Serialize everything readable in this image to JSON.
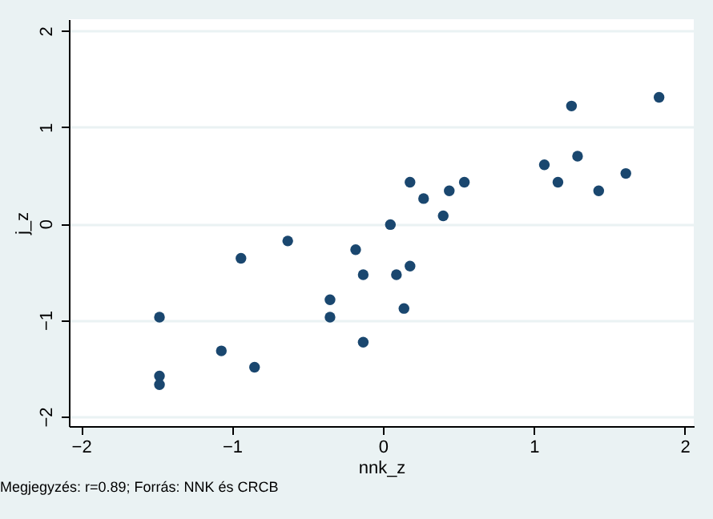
{
  "chart_data": {
    "type": "scatter",
    "xlabel": "nnk_z",
    "ylabel": "j_z",
    "annotations": [
      "Megjegyzés: r=0.89; Forrás: NNK és CRCB"
    ],
    "x": [
      -1.48,
      -1.48,
      -1.48,
      -1.07,
      -0.85,
      -0.94,
      -0.63,
      -0.35,
      -0.35,
      -0.18,
      -0.13,
      -0.13,
      0.05,
      0.09,
      0.14,
      0.18,
      0.18,
      0.27,
      0.4,
      0.44,
      0.54,
      1.07,
      1.16,
      1.25,
      1.29,
      1.43,
      1.61,
      1.83
    ],
    "series": [
      {
        "color": "#1a476f",
        "values": [
          -0.97,
          -1.58,
          -1.67,
          -1.32,
          -1.49,
          -0.36,
          -0.18,
          -0.79,
          -0.97,
          -0.27,
          -0.53,
          -1.23,
          -0.01,
          -0.53,
          -0.88,
          -0.44,
          0.43,
          0.26,
          0.08,
          0.34,
          0.43,
          0.61,
          0.43,
          1.22,
          0.7,
          0.34,
          0.52,
          1.31
        ]
      }
    ],
    "xlim": [
      -2.08,
      2.06
    ],
    "ylim": [
      -2.1,
      2.12
    ],
    "xticks": [
      -2,
      -1,
      0,
      1,
      2
    ],
    "yticks": [
      -2,
      -1,
      0,
      1,
      2
    ],
    "grid": "y",
    "marker": "circle"
  }
}
